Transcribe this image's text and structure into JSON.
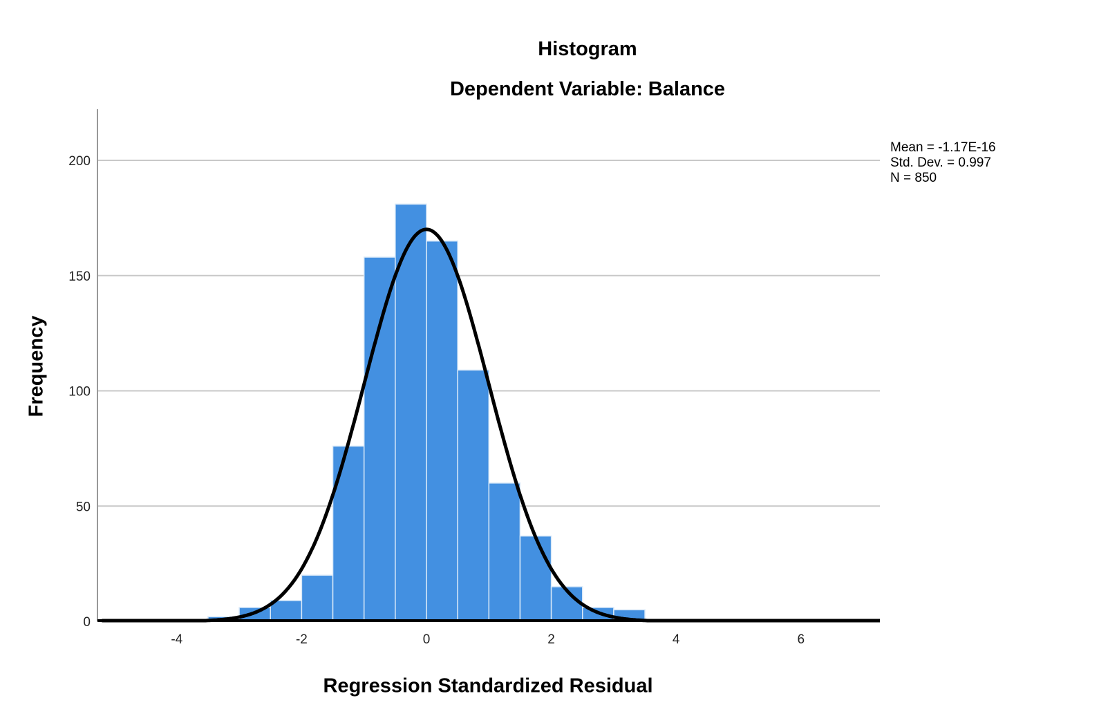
{
  "chart_data": {
    "type": "bar",
    "title": "Histogram",
    "subtitle": "Dependent Variable: Balance",
    "xlabel": "Regression Standardized Residual",
    "ylabel": "Frequency",
    "bin_width": 0.5,
    "bin_edges": [
      -3.5,
      -3.0,
      -2.5,
      -2.0,
      -1.5,
      -1.0,
      -0.5,
      0.0,
      0.5,
      1.0,
      1.5,
      2.0,
      2.5,
      3.0,
      3.5
    ],
    "categories": [
      "-3.5 to -3.0",
      "-3.0 to -2.5",
      "-2.5 to -2.0",
      "-2.0 to -1.5",
      "-1.5 to -1.0",
      "-1.0 to -0.5",
      "-0.5 to 0.0",
      "0.0 to 0.5",
      "0.5 to 1.0",
      "1.0 to 1.5",
      "1.5 to 2.0",
      "2.0 to 2.5",
      "2.5 to 3.0",
      "3.0 to 3.5"
    ],
    "values": [
      2,
      6,
      9,
      20,
      76,
      158,
      181,
      165,
      109,
      60,
      37,
      15,
      6,
      5
    ],
    "overlay": {
      "type": "normal_curve",
      "mean": -1.17e-16,
      "sd": 0.997,
      "n": 850
    },
    "xlim": [
      -5.2,
      7.3
    ],
    "ylim": [
      0,
      222
    ],
    "xticks": [
      -4,
      -2,
      0,
      2,
      4,
      6
    ],
    "yticks": [
      0,
      50,
      100,
      150,
      200
    ],
    "grid": "horizontal",
    "legend_position": "top-right",
    "bar_color": "#4390E1",
    "bar_edge_color": "#D8E8F8",
    "curve_color": "#000000",
    "grid_color": "#C8C8C8"
  },
  "stats_box": {
    "mean": "Mean = -1.17E-16",
    "std_dev": "Std. Dev. = 0.997",
    "n": "N = 850"
  }
}
